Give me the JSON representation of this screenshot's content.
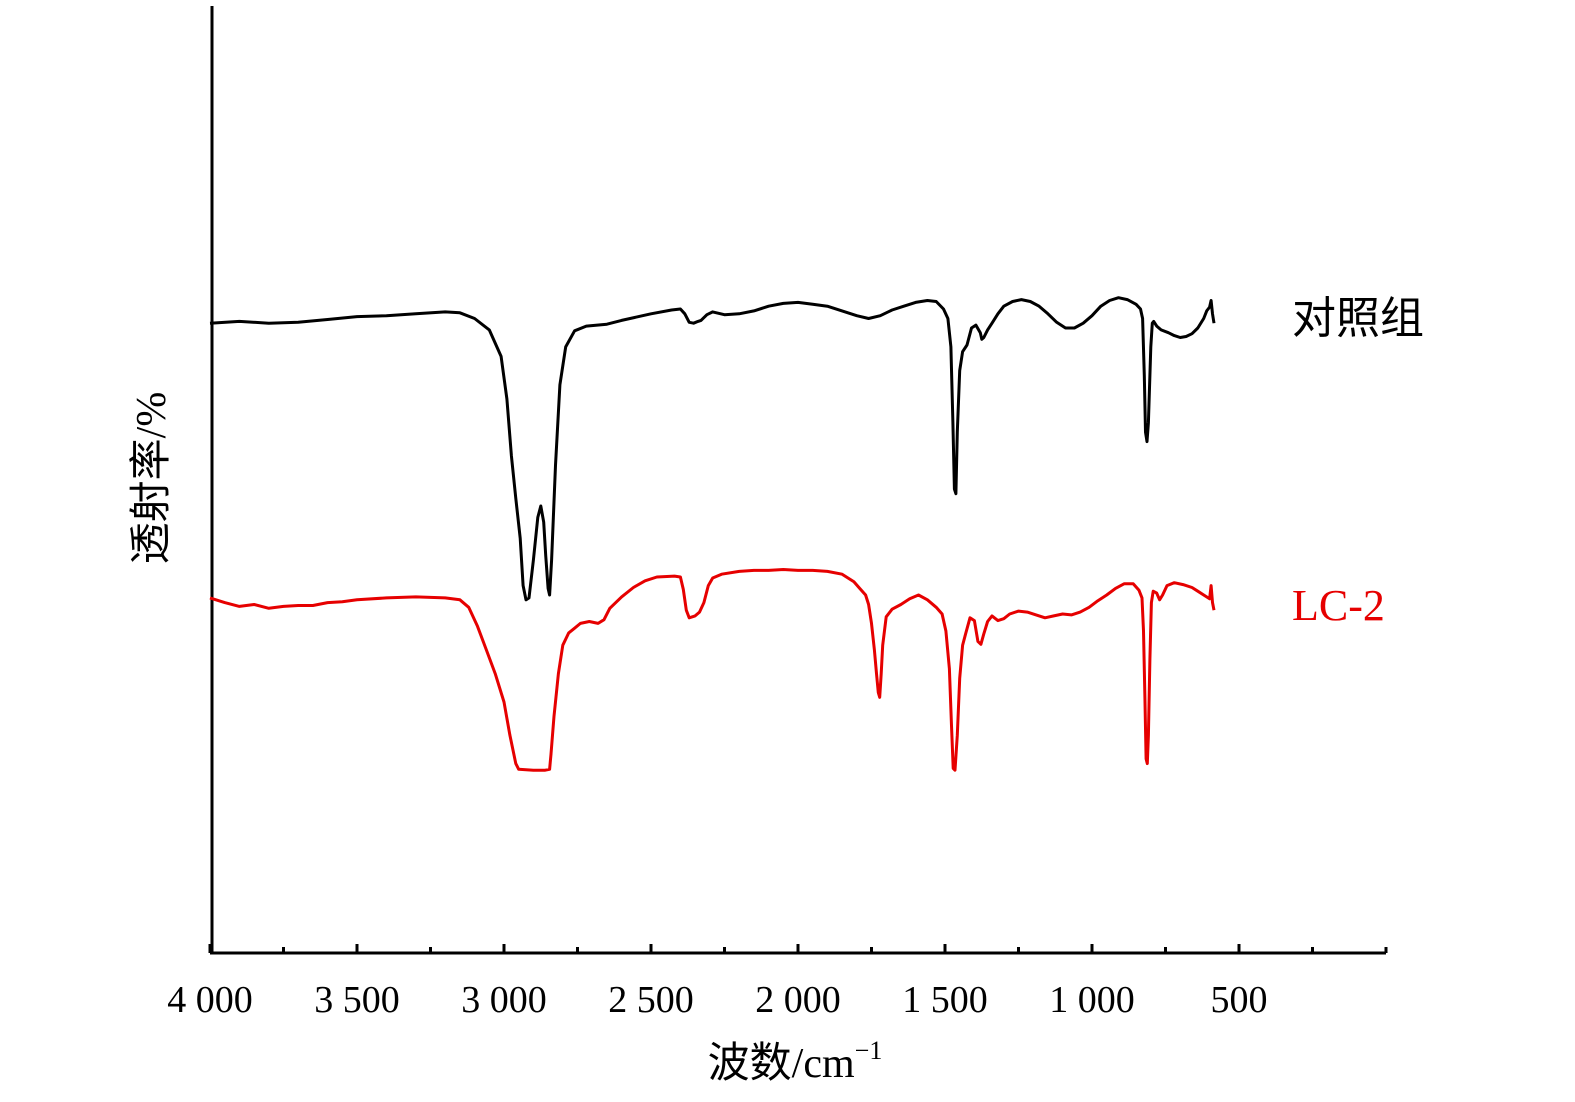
{
  "chart_data": {
    "type": "line",
    "xlabel": "波数/cm",
    "xlabel_sup": "−1",
    "ylabel": "透射率/%",
    "xlim": [
      4000,
      0
    ],
    "x_ticks": [
      4000,
      3500,
      3000,
      2500,
      2000,
      1500,
      1000,
      500
    ],
    "x_tick_labels": [
      "4 000",
      "3 500",
      "3 000",
      "2 500",
      "2 000",
      "1 500",
      "1 000",
      "500"
    ],
    "ylim": [
      0,
      100
    ],
    "grid": false,
    "series": [
      {
        "name": "对照组",
        "color": "#000000",
        "points": [
          [
            4000,
            66.5
          ],
          [
            3900,
            66.7
          ],
          [
            3800,
            66.5
          ],
          [
            3700,
            66.6
          ],
          [
            3600,
            66.9
          ],
          [
            3500,
            67.2
          ],
          [
            3400,
            67.3
          ],
          [
            3300,
            67.5
          ],
          [
            3200,
            67.7
          ],
          [
            3150,
            67.6
          ],
          [
            3100,
            67.0
          ],
          [
            3050,
            65.8
          ],
          [
            3010,
            63.0
          ],
          [
            2990,
            58.5
          ],
          [
            2975,
            52.5
          ],
          [
            2960,
            48.0
          ],
          [
            2945,
            43.8
          ],
          [
            2935,
            38.8
          ],
          [
            2925,
            37.3
          ],
          [
            2915,
            37.5
          ],
          [
            2900,
            41.5
          ],
          [
            2885,
            46.0
          ],
          [
            2875,
            47.2
          ],
          [
            2865,
            45.5
          ],
          [
            2858,
            42.0
          ],
          [
            2850,
            38.5
          ],
          [
            2845,
            37.8
          ],
          [
            2838,
            41.5
          ],
          [
            2825,
            51.5
          ],
          [
            2810,
            60.0
          ],
          [
            2790,
            64.0
          ],
          [
            2760,
            65.7
          ],
          [
            2720,
            66.2
          ],
          [
            2650,
            66.4
          ],
          [
            2600,
            66.8
          ],
          [
            2500,
            67.5
          ],
          [
            2430,
            67.9
          ],
          [
            2400,
            68.0
          ],
          [
            2385,
            67.5
          ],
          [
            2370,
            66.6
          ],
          [
            2355,
            66.5
          ],
          [
            2340,
            66.7
          ],
          [
            2330,
            66.8
          ],
          [
            2310,
            67.4
          ],
          [
            2290,
            67.7
          ],
          [
            2250,
            67.4
          ],
          [
            2200,
            67.5
          ],
          [
            2150,
            67.8
          ],
          [
            2100,
            68.3
          ],
          [
            2050,
            68.6
          ],
          [
            2000,
            68.7
          ],
          [
            1950,
            68.5
          ],
          [
            1900,
            68.3
          ],
          [
            1850,
            67.8
          ],
          [
            1800,
            67.3
          ],
          [
            1760,
            67.0
          ],
          [
            1720,
            67.3
          ],
          [
            1680,
            67.9
          ],
          [
            1640,
            68.3
          ],
          [
            1600,
            68.7
          ],
          [
            1560,
            68.9
          ],
          [
            1530,
            68.8
          ],
          [
            1505,
            68.0
          ],
          [
            1490,
            67.0
          ],
          [
            1480,
            64.0
          ],
          [
            1473,
            56.0
          ],
          [
            1468,
            49.0
          ],
          [
            1463,
            48.5
          ],
          [
            1458,
            55.0
          ],
          [
            1450,
            61.5
          ],
          [
            1440,
            63.5
          ],
          [
            1425,
            64.2
          ],
          [
            1410,
            66.0
          ],
          [
            1395,
            66.3
          ],
          [
            1380,
            65.5
          ],
          [
            1375,
            64.8
          ],
          [
            1368,
            65.0
          ],
          [
            1355,
            65.8
          ],
          [
            1340,
            66.5
          ],
          [
            1320,
            67.5
          ],
          [
            1300,
            68.3
          ],
          [
            1270,
            68.8
          ],
          [
            1240,
            69.0
          ],
          [
            1210,
            68.8
          ],
          [
            1180,
            68.3
          ],
          [
            1150,
            67.5
          ],
          [
            1120,
            66.6
          ],
          [
            1090,
            66.0
          ],
          [
            1060,
            66.0
          ],
          [
            1030,
            66.5
          ],
          [
            1000,
            67.3
          ],
          [
            970,
            68.3
          ],
          [
            940,
            68.9
          ],
          [
            910,
            69.2
          ],
          [
            880,
            69.0
          ],
          [
            850,
            68.5
          ],
          [
            835,
            68.0
          ],
          [
            828,
            67.0
          ],
          [
            822,
            61.0
          ],
          [
            818,
            55.0
          ],
          [
            813,
            54.0
          ],
          [
            808,
            56.0
          ],
          [
            800,
            64.0
          ],
          [
            795,
            66.5
          ],
          [
            790,
            66.7
          ],
          [
            780,
            66.2
          ],
          [
            765,
            65.8
          ],
          [
            740,
            65.5
          ],
          [
            720,
            65.2
          ],
          [
            700,
            65.0
          ],
          [
            680,
            65.1
          ],
          [
            660,
            65.4
          ],
          [
            640,
            66.0
          ],
          [
            620,
            67.0
          ],
          [
            610,
            67.8
          ],
          [
            600,
            68.2
          ],
          [
            595,
            68.9
          ],
          [
            590,
            67.5
          ],
          [
            585,
            66.5
          ]
        ]
      },
      {
        "name": "LC-2",
        "color": "#e60000",
        "points": [
          [
            4000,
            37.5
          ],
          [
            3950,
            37.0
          ],
          [
            3900,
            36.6
          ],
          [
            3850,
            36.8
          ],
          [
            3800,
            36.4
          ],
          [
            3750,
            36.6
          ],
          [
            3700,
            36.7
          ],
          [
            3650,
            36.7
          ],
          [
            3600,
            37.0
          ],
          [
            3550,
            37.1
          ],
          [
            3500,
            37.3
          ],
          [
            3400,
            37.5
          ],
          [
            3300,
            37.6
          ],
          [
            3200,
            37.5
          ],
          [
            3150,
            37.3
          ],
          [
            3120,
            36.5
          ],
          [
            3090,
            34.5
          ],
          [
            3060,
            32.0
          ],
          [
            3030,
            29.5
          ],
          [
            3000,
            26.5
          ],
          [
            2980,
            23.0
          ],
          [
            2960,
            20.0
          ],
          [
            2950,
            19.4
          ],
          [
            2900,
            19.3
          ],
          [
            2860,
            19.3
          ],
          [
            2845,
            19.4
          ],
          [
            2840,
            21.0
          ],
          [
            2830,
            25.0
          ],
          [
            2815,
            29.5
          ],
          [
            2800,
            32.5
          ],
          [
            2780,
            33.8
          ],
          [
            2760,
            34.3
          ],
          [
            2740,
            34.8
          ],
          [
            2710,
            35.0
          ],
          [
            2680,
            34.8
          ],
          [
            2660,
            35.2
          ],
          [
            2640,
            36.4
          ],
          [
            2600,
            37.6
          ],
          [
            2560,
            38.6
          ],
          [
            2520,
            39.3
          ],
          [
            2480,
            39.7
          ],
          [
            2420,
            39.8
          ],
          [
            2400,
            39.7
          ],
          [
            2390,
            38.4
          ],
          [
            2380,
            36.2
          ],
          [
            2370,
            35.4
          ],
          [
            2350,
            35.6
          ],
          [
            2335,
            36.0
          ],
          [
            2320,
            37.0
          ],
          [
            2305,
            38.8
          ],
          [
            2290,
            39.6
          ],
          [
            2260,
            40.0
          ],
          [
            2200,
            40.3
          ],
          [
            2150,
            40.4
          ],
          [
            2100,
            40.4
          ],
          [
            2050,
            40.5
          ],
          [
            2000,
            40.4
          ],
          [
            1950,
            40.4
          ],
          [
            1900,
            40.3
          ],
          [
            1850,
            40.0
          ],
          [
            1810,
            39.2
          ],
          [
            1790,
            38.5
          ],
          [
            1770,
            37.8
          ],
          [
            1760,
            36.8
          ],
          [
            1750,
            34.8
          ],
          [
            1740,
            32.0
          ],
          [
            1733,
            29.5
          ],
          [
            1727,
            27.5
          ],
          [
            1722,
            27.0
          ],
          [
            1717,
            29.5
          ],
          [
            1712,
            32.5
          ],
          [
            1700,
            35.5
          ],
          [
            1680,
            36.3
          ],
          [
            1650,
            36.8
          ],
          [
            1620,
            37.4
          ],
          [
            1590,
            37.8
          ],
          [
            1560,
            37.3
          ],
          [
            1530,
            36.5
          ],
          [
            1510,
            35.8
          ],
          [
            1497,
            34.0
          ],
          [
            1485,
            30.0
          ],
          [
            1478,
            24.0
          ],
          [
            1472,
            19.5
          ],
          [
            1466,
            19.3
          ],
          [
            1458,
            23.0
          ],
          [
            1450,
            29.0
          ],
          [
            1440,
            32.5
          ],
          [
            1430,
            33.7
          ],
          [
            1415,
            35.4
          ],
          [
            1400,
            35.1
          ],
          [
            1388,
            32.9
          ],
          [
            1378,
            32.6
          ],
          [
            1368,
            33.7
          ],
          [
            1355,
            35.0
          ],
          [
            1340,
            35.6
          ],
          [
            1320,
            35.1
          ],
          [
            1300,
            35.3
          ],
          [
            1280,
            35.8
          ],
          [
            1250,
            36.1
          ],
          [
            1220,
            36.0
          ],
          [
            1190,
            35.7
          ],
          [
            1160,
            35.4
          ],
          [
            1130,
            35.6
          ],
          [
            1100,
            35.8
          ],
          [
            1070,
            35.7
          ],
          [
            1040,
            36.0
          ],
          [
            1010,
            36.5
          ],
          [
            980,
            37.2
          ],
          [
            950,
            37.8
          ],
          [
            920,
            38.5
          ],
          [
            890,
            39.0
          ],
          [
            860,
            39.0
          ],
          [
            840,
            38.3
          ],
          [
            830,
            37.5
          ],
          [
            825,
            34.0
          ],
          [
            820,
            27.0
          ],
          [
            816,
            20.5
          ],
          [
            812,
            20.0
          ],
          [
            808,
            23.0
          ],
          [
            803,
            31.0
          ],
          [
            798,
            37.0
          ],
          [
            792,
            38.2
          ],
          [
            780,
            38.0
          ],
          [
            770,
            37.3
          ],
          [
            760,
            37.8
          ],
          [
            745,
            38.8
          ],
          [
            720,
            39.1
          ],
          [
            690,
            38.9
          ],
          [
            660,
            38.6
          ],
          [
            640,
            38.2
          ],
          [
            620,
            37.8
          ],
          [
            600,
            37.4
          ],
          [
            595,
            38.8
          ],
          [
            590,
            37.0
          ],
          [
            585,
            36.2
          ]
        ]
      }
    ]
  }
}
